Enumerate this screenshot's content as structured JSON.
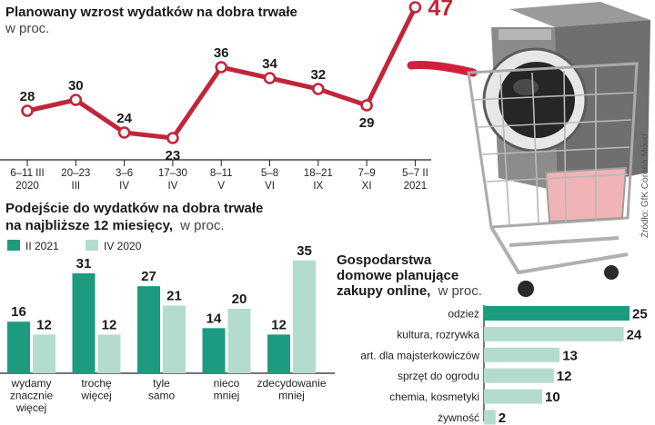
{
  "source_note": "Źródło: GfK Corona Mood",
  "colors": {
    "line": "#c0263a",
    "bar_dark": "#1d9b80",
    "bar_light": "#b3dccf"
  },
  "chart_data": [
    {
      "type": "line",
      "title": "Planowany wzrost wydatków na dobra trwałe",
      "subtitle": "w proc.",
      "x": [
        "6–11 III 2020",
        "20–23 III",
        "3–6 IV",
        "17–30 IV",
        "8–11 V",
        "5–8 VI",
        "18–21 IX",
        "7–9 XI",
        "5–7 II 2021"
      ],
      "tick_labels": [
        [
          "6–11 III",
          "2020"
        ],
        [
          "20–23",
          "III"
        ],
        [
          "3–6",
          "IV"
        ],
        [
          "17–30",
          "IV"
        ],
        [
          "8–11",
          "V"
        ],
        [
          "5–8",
          "VI"
        ],
        [
          "18–21",
          "IX"
        ],
        [
          "7–9",
          "XI"
        ],
        [
          "5–7 II",
          "2021"
        ]
      ],
      "values": [
        28,
        30,
        24,
        23,
        36,
        34,
        32,
        29,
        47
      ],
      "highlight_last": true
    },
    {
      "type": "bar",
      "title": "Podejście do wydatków na dobra trwałe",
      "title_line2": "na najbliższe 12 miesięcy,",
      "subtitle": "w proc.",
      "categories": [
        "wydamy znacznie więcej",
        "trochę więcej",
        "tyle samo",
        "nieco mniej",
        "zdecydowanie mniej"
      ],
      "category_lines": [
        [
          "wydamy",
          "znacznie",
          "więcej"
        ],
        [
          "trochę",
          "więcej"
        ],
        [
          "tyle",
          "samo"
        ],
        [
          "nieco",
          "mniej"
        ],
        [
          "zdecydowanie",
          "mniej"
        ]
      ],
      "series": [
        {
          "name": "II 2021",
          "values": [
            16,
            31,
            27,
            14,
            12
          ]
        },
        {
          "name": "IV 2020",
          "values": [
            12,
            12,
            21,
            20,
            35
          ]
        }
      ]
    },
    {
      "type": "bar",
      "orientation": "horizontal",
      "title_lines": [
        "Gospodarstwa",
        "domowe planujące",
        "zakupy online,"
      ],
      "subtitle": "w proc.",
      "categories": [
        "odzież",
        "kultura, rozrywka",
        "art. dla majsterkowiczów",
        "sprzęt do ogrodu",
        "chemia, kosmetyki",
        "żywność"
      ],
      "values": [
        25,
        24,
        13,
        12,
        10,
        2
      ],
      "highlight_first": true
    }
  ]
}
